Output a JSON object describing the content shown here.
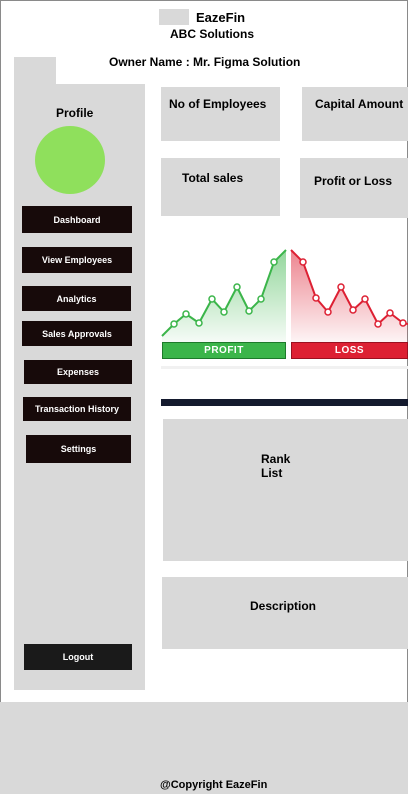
{
  "header": {
    "app_name": "EazeFin",
    "company": "ABC Solutions",
    "owner": "Owner Name : Mr. Figma Solution"
  },
  "sidebar": {
    "profile_label": "Profile",
    "items": [
      {
        "label": "Dashboard"
      },
      {
        "label": "View Employees"
      },
      {
        "label": "Analytics"
      },
      {
        "label": "Sales Approvals"
      },
      {
        "label": "Expenses"
      },
      {
        "label": "Transaction History"
      },
      {
        "label": "Settings"
      }
    ],
    "logout_label": "Logout"
  },
  "cards": {
    "employees": "No of Employees",
    "capital": "Capital Amount",
    "sales": "Total sales",
    "profit_loss": "Profit or Loss",
    "rank_line1": "Rank",
    "rank_line2": "List",
    "description": "Description"
  },
  "graphic": {
    "profit_label": "PROFIT",
    "loss_label": "LOSS",
    "profit_color": "#3bb54a",
    "loss_color": "#dd2033"
  },
  "footer": {
    "copyright": "@Copyright EazeFin"
  }
}
